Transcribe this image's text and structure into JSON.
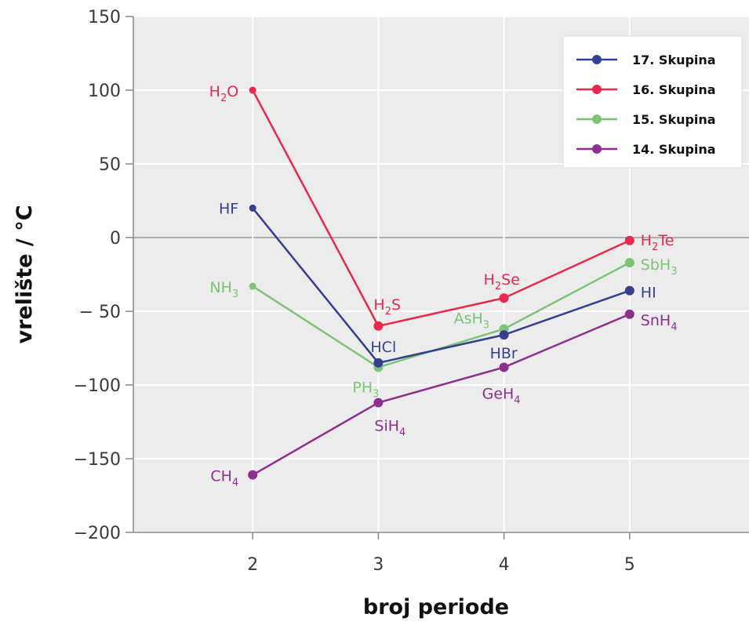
{
  "chart_data": {
    "type": "line",
    "xlabel": "broj periode",
    "ylabel": "vrelište / °C",
    "x_ticks": [
      2,
      3,
      4,
      5
    ],
    "y_ticks": [
      150,
      100,
      50,
      0,
      -50,
      -100,
      -150,
      -200
    ],
    "y_tick_labels": [
      "150",
      "100",
      "50",
      "0",
      "− 50",
      "−100",
      "−150",
      "−200"
    ],
    "xlim": [
      1.05,
      5.95
    ],
    "ylim": [
      -200,
      150
    ],
    "grid": true,
    "legend_position": "top-right",
    "series": [
      {
        "name": "17. Skupina",
        "color": "#353f92",
        "points": [
          {
            "x": 2,
            "y": 20,
            "label": "HF",
            "sub": "",
            "label_after": ""
          },
          {
            "x": 3,
            "y": -85,
            "label": "HCl",
            "sub": "",
            "label_after": ""
          },
          {
            "x": 4,
            "y": -66,
            "label": "HBr",
            "sub": "",
            "label_after": ""
          },
          {
            "x": 5,
            "y": -36,
            "label": "HI",
            "sub": "",
            "label_after": ""
          }
        ]
      },
      {
        "name": "16. Skupina",
        "color": "#e8294c",
        "points": [
          {
            "x": 2,
            "y": 100,
            "label": "H",
            "sub": "2",
            "label_after": "O"
          },
          {
            "x": 3,
            "y": -60,
            "label": "H",
            "sub": "2",
            "label_after": "S"
          },
          {
            "x": 4,
            "y": -41,
            "label": "H",
            "sub": "2",
            "label_after": "Se"
          },
          {
            "x": 5,
            "y": -2,
            "label": "H",
            "sub": "2",
            "label_after": "Te"
          }
        ]
      },
      {
        "name": "15. Skupina",
        "color": "#7cc576",
        "points": [
          {
            "x": 2,
            "y": -33,
            "label": "NH",
            "sub": "3",
            "label_after": ""
          },
          {
            "x": 3,
            "y": -88,
            "label": "PH",
            "sub": "3",
            "label_after": ""
          },
          {
            "x": 4,
            "y": -62,
            "label": "AsH",
            "sub": "3",
            "label_after": ""
          },
          {
            "x": 5,
            "y": -17,
            "label": "SbH",
            "sub": "3",
            "label_after": ""
          }
        ]
      },
      {
        "name": "14. Skupina",
        "color": "#8e2f90",
        "points": [
          {
            "x": 2,
            "y": -161,
            "label": "CH",
            "sub": "4",
            "label_after": ""
          },
          {
            "x": 3,
            "y": -112,
            "label": "SiH",
            "sub": "4",
            "label_after": ""
          },
          {
            "x": 4,
            "y": -88,
            "label": "GeH",
            "sub": "4",
            "label_after": ""
          },
          {
            "x": 5,
            "y": -52,
            "label": "SnH",
            "sub": "4",
            "label_after": ""
          }
        ]
      }
    ]
  }
}
